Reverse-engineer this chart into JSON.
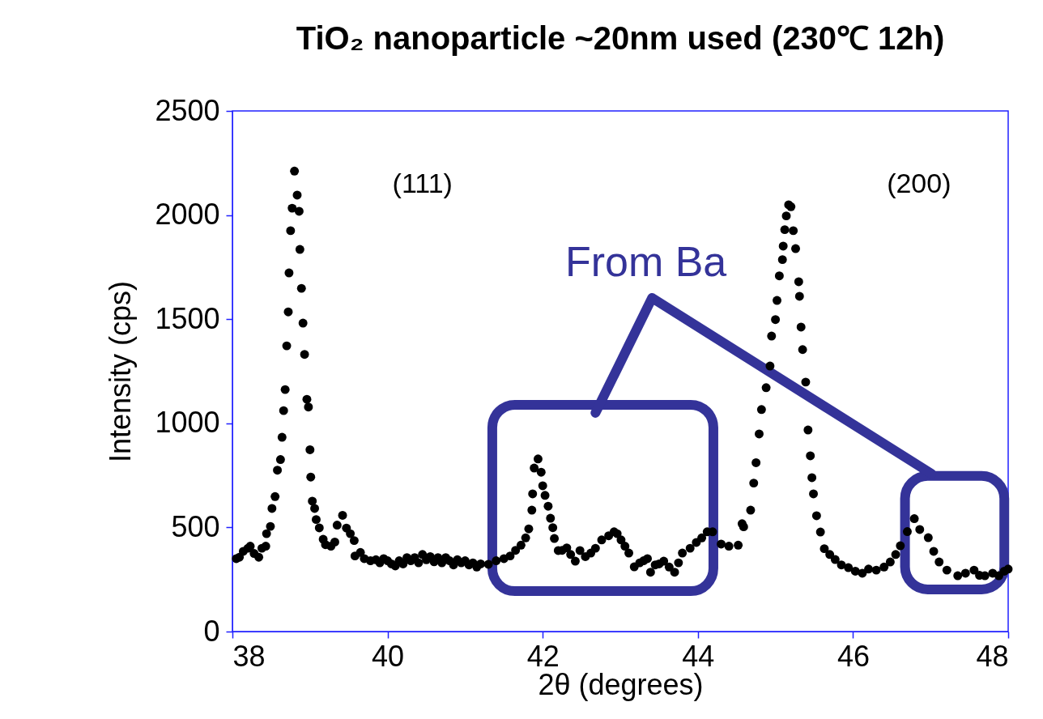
{
  "chart_data": {
    "type": "scatter",
    "title": "TiO₂ nanoparticle ~20nm used (230℃ 12h)",
    "xlabel": "2θ (degrees)",
    "ylabel": "Intensity (cps)",
    "xlim": [
      38,
      48
    ],
    "xticks": [
      {
        "value": 38,
        "label": "38"
      },
      {
        "value": 40,
        "label": "40"
      },
      {
        "value": 42,
        "label": "42"
      },
      {
        "value": 44,
        "label": "44"
      },
      {
        "value": 46,
        "label": "46"
      },
      {
        "value": 48,
        "label": "48"
      }
    ],
    "ylim": [
      0,
      2500
    ],
    "yticks": [
      {
        "value": 0,
        "label": "0"
      },
      {
        "value": 500,
        "label": "500"
      },
      {
        "value": 1000,
        "label": "1000"
      },
      {
        "value": 1500,
        "label": "1500"
      },
      {
        "value": 2000,
        "label": "2000"
      },
      {
        "value": 2500,
        "label": "2500"
      }
    ],
    "grid": false,
    "marker": "circle",
    "annotations": [
      "(111)",
      "(200)",
      "From Ba"
    ],
    "series": [
      {
        "color": "#000000",
        "x": [
          38.05,
          38.09,
          38.14,
          38.2,
          38.23,
          38.28,
          38.34,
          38.38,
          38.43,
          38.44,
          38.49,
          38.51,
          38.55,
          38.58,
          38.62,
          38.64,
          38.66,
          38.68,
          38.7,
          38.72,
          38.73,
          38.75,
          38.77,
          38.8,
          38.835,
          38.86,
          38.87,
          38.89,
          38.91,
          38.93,
          38.96,
          38.98,
          39.0,
          39.01,
          39.03,
          39.06,
          39.08,
          39.12,
          39.17,
          39.2,
          39.27,
          39.32,
          39.35,
          39.42,
          39.47,
          39.52,
          39.57,
          39.58,
          39.65,
          39.7,
          39.78,
          39.85,
          39.9,
          39.95,
          40.0,
          40.05,
          40.1,
          40.15,
          40.2,
          40.25,
          40.3,
          40.35,
          40.4,
          40.45,
          40.5,
          40.55,
          40.6,
          40.65,
          40.7,
          40.75,
          40.8,
          40.85,
          40.9,
          40.95,
          41.0,
          41.05,
          41.1,
          41.15,
          41.2,
          41.3,
          41.4,
          41.5,
          41.58,
          41.65,
          41.72,
          41.78,
          41.82,
          41.86,
          41.87,
          41.89,
          41.94,
          41.98,
          42.0,
          42.03,
          42.07,
          42.1,
          42.13,
          42.15,
          42.2,
          42.25,
          42.31,
          42.36,
          42.42,
          42.48,
          42.55,
          42.62,
          42.68,
          42.76,
          42.85,
          42.92,
          42.96,
          43.01,
          43.06,
          43.11,
          43.18,
          43.25,
          43.3,
          43.35,
          43.39,
          43.45,
          43.5,
          43.56,
          43.63,
          43.7,
          43.75,
          43.8,
          43.9,
          43.98,
          44.05,
          44.12,
          44.19,
          44.3,
          44.4,
          44.52,
          44.57,
          44.59,
          44.68,
          44.72,
          44.75,
          44.79,
          44.82,
          44.88,
          44.93,
          44.95,
          45.0,
          45.02,
          45.05,
          45.09,
          45.1,
          45.12,
          45.14,
          45.17,
          45.2,
          45.23,
          45.26,
          45.3,
          45.31,
          45.33,
          45.35,
          45.39,
          45.42,
          45.45,
          45.47,
          45.49,
          45.53,
          45.58,
          45.63,
          45.7,
          45.77,
          45.85,
          45.94,
          46.03,
          46.12,
          46.2,
          46.3,
          46.4,
          46.48,
          46.55,
          46.61,
          46.7,
          46.79,
          46.86,
          46.97,
          47.04,
          47.11,
          47.21,
          47.35,
          47.45,
          47.56,
          47.63,
          47.7,
          47.8,
          47.88,
          47.95,
          48.0
        ],
        "values": [
          350,
          357,
          385,
          400,
          410,
          375,
          357,
          400,
          410,
          470,
          505,
          591,
          648,
          775,
          826,
          933,
          1061,
          1162,
          1372,
          1535,
          1722,
          1925,
          2033,
          2211,
          2096,
          2018,
          1835,
          1648,
          1481,
          1331,
          1115,
          1078,
          873,
          742,
          626,
          591,
          538,
          498,
          443,
          417,
          410,
          430,
          511,
          558,
          497,
          470,
          437,
          363,
          380,
          350,
          340,
          345,
          330,
          350,
          340,
          325,
          315,
          340,
          325,
          355,
          340,
          355,
          330,
          370,
          345,
          360,
          335,
          355,
          330,
          355,
          340,
          320,
          345,
          330,
          340,
          320,
          330,
          310,
          325,
          323,
          340,
          350,
          363,
          390,
          415,
          450,
          493,
          583,
          661,
          785,
          829,
          765,
          700,
          654,
          602,
          544,
          499,
          447,
          389,
          390,
          402,
          370,
          338,
          389,
          360,
          377,
          400,
          440,
          460,
          479,
          470,
          440,
          410,
          377,
          311,
          330,
          340,
          350,
          285,
          320,
          325,
          338,
          310,
          285,
          330,
          377,
          400,
          428,
          450,
          479,
          479,
          420,
          410,
          415,
          518,
          503,
          583,
          713,
          811,
          949,
          1066,
          1171,
          1275,
          1419,
          1498,
          1590,
          1708,
          1786,
          1851,
          1930,
          1996,
          2049,
          2040,
          1925,
          1839,
          1680,
          1610,
          1462,
          1354,
          1198,
          968,
          844,
          739,
          661,
          556,
          478,
          398,
          370,
          346,
          320,
          307,
          290,
          280,
          300,
          295,
          310,
          334,
          370,
          412,
          480,
          542,
          490,
          451,
          385,
          334,
          295,
          268,
          280,
          295,
          270,
          268,
          280,
          268,
          290,
          300
        ]
      }
    ]
  }
}
